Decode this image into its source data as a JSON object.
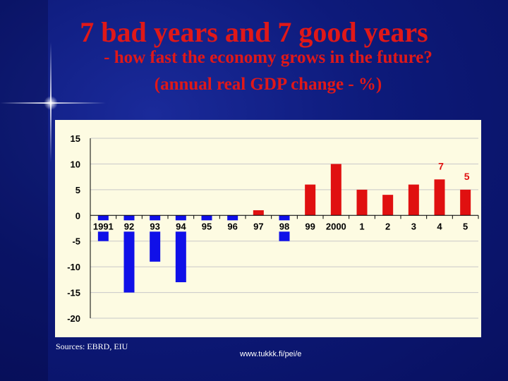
{
  "slide": {
    "title": "7 bad years and 7 good years",
    "subtitle": "- how fast the economy grows in the future?",
    "subtitle2": "(annual real GDP change - %)",
    "source": "Sources: EBRD, EIU",
    "url": "www.tukkk.fi/pei/e"
  },
  "colors": {
    "negative": "#1010e8",
    "positive": "#e01010",
    "label": "#e01010"
  },
  "chart_data": {
    "type": "bar",
    "title": "annual real GDP change - %",
    "xlabel": "",
    "ylabel": "",
    "ylim": [
      -20,
      15
    ],
    "yticks": [
      15,
      10,
      5,
      0,
      -5,
      -10,
      -15,
      -20
    ],
    "grid": true,
    "categories": [
      "1991",
      "92",
      "93",
      "94",
      "95",
      "96",
      "97",
      "98",
      "99",
      "2000",
      "1",
      "2",
      "3",
      "4",
      "5"
    ],
    "values": [
      -5,
      -15,
      -9,
      -13,
      -2,
      -2,
      1,
      -5,
      6,
      10,
      5,
      4,
      6,
      7,
      5
    ],
    "data_labels": [
      {
        "category": "4",
        "text": "7"
      },
      {
        "category": "5",
        "text": "5"
      }
    ]
  }
}
